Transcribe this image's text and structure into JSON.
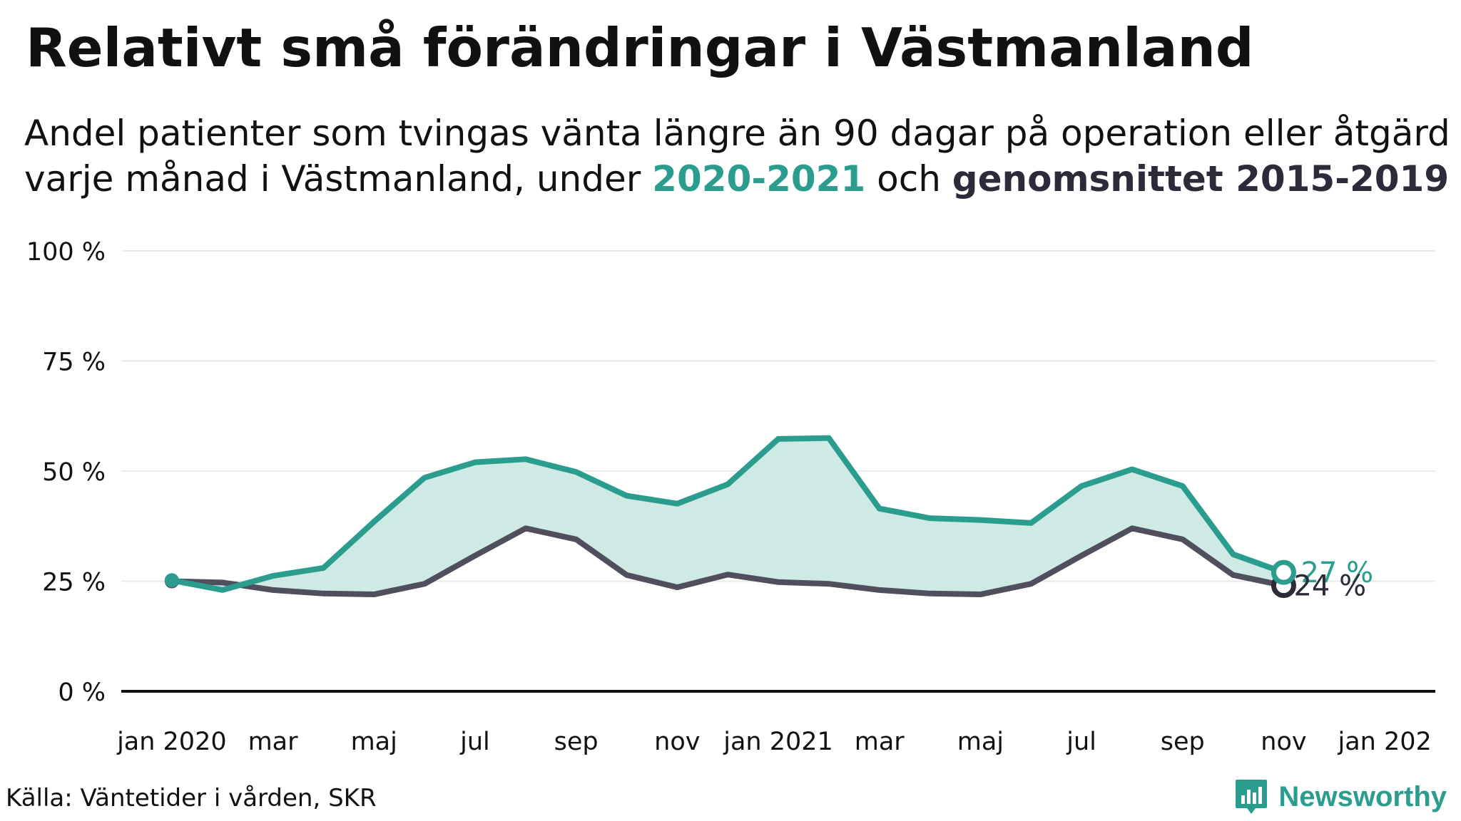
{
  "header": {
    "title": "Relativt små förändringar i Västmanland",
    "subtitle_line1": "Andel patienter som tvingas vänta längre än 90 dagar på operation eller åtgärd",
    "subtitle_line2_pre": "varje månad i Västmanland, under ",
    "subtitle_highlight_a": "2020-2021",
    "subtitle_mid": " och ",
    "subtitle_highlight_b": "genomsnittet 2015-2019"
  },
  "footer": {
    "source": "Källa: Väntetider i vården, SKR",
    "brand": "Newsworthy"
  },
  "colors": {
    "series_2020_2021": "#2a9d8f",
    "series_average": "#4f4f5e",
    "fill": "#cfe9e5",
    "end_label_average": "#2b2b3a"
  },
  "icons": {
    "brand": "bar-chart-icon"
  },
  "chart_data": {
    "type": "line",
    "x": [
      "2020-01",
      "2020-02",
      "2020-03",
      "2020-04",
      "2020-05",
      "2020-06",
      "2020-07",
      "2020-08",
      "2020-09",
      "2020-10",
      "2020-11",
      "2020-12",
      "2021-01",
      "2021-02",
      "2021-03",
      "2021-04",
      "2021-05",
      "2021-06",
      "2021-07",
      "2021-08",
      "2021-09",
      "2021-10",
      "2021-11"
    ],
    "x_ticks": [
      {
        "month": "2020-01",
        "label": "jan 2020"
      },
      {
        "month": "2020-03",
        "label": "mar"
      },
      {
        "month": "2020-05",
        "label": "maj"
      },
      {
        "month": "2020-07",
        "label": "jul"
      },
      {
        "month": "2020-09",
        "label": "sep"
      },
      {
        "month": "2020-11",
        "label": "nov"
      },
      {
        "month": "2021-01",
        "label": "jan 2021"
      },
      {
        "month": "2021-03",
        "label": "mar"
      },
      {
        "month": "2021-05",
        "label": "maj"
      },
      {
        "month": "2021-07",
        "label": "jul"
      },
      {
        "month": "2021-09",
        "label": "sep"
      },
      {
        "month": "2021-11",
        "label": "nov"
      },
      {
        "month": "2022-01",
        "label": "jan 202"
      }
    ],
    "y_ticks": [
      {
        "value": 0,
        "label": "0 %"
      },
      {
        "value": 25,
        "label": "25 %"
      },
      {
        "value": 50,
        "label": "50 %"
      },
      {
        "value": 75,
        "label": "75 %"
      },
      {
        "value": 100,
        "label": "100 %"
      }
    ],
    "xlim": [
      "2019-12",
      "2022-02"
    ],
    "ylim": [
      0,
      100
    ],
    "grid": true,
    "legend": "none",
    "series": [
      {
        "name": "2020-2021",
        "values": [
          25.2,
          23.0,
          26.2,
          28.0,
          38.5,
          48.5,
          52.0,
          52.7,
          49.8,
          44.4,
          42.6,
          47.0,
          57.3,
          57.5,
          41.5,
          39.3,
          38.9,
          38.2,
          46.6,
          50.4,
          46.6,
          31.1,
          27.0
        ],
        "end_label": "27 %"
      },
      {
        "name": "genomsnittet 2015-2019",
        "values": [
          25.0,
          24.7,
          23.0,
          22.2,
          22.0,
          24.4,
          30.8,
          37.0,
          34.5,
          26.4,
          23.6,
          26.5,
          24.8,
          24.4,
          23.0,
          22.2,
          22.0,
          24.4,
          30.8,
          37.0,
          34.5,
          26.4,
          24.0
        ],
        "end_label": "24 %"
      }
    ]
  }
}
